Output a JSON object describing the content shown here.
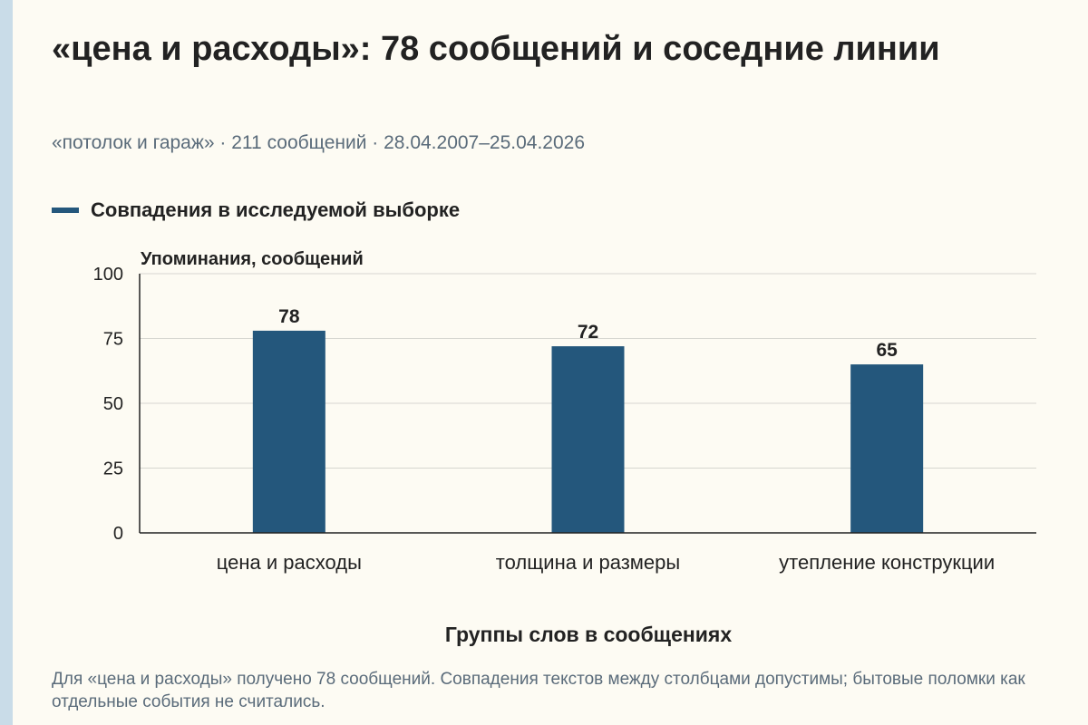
{
  "title": "«цена и расходы»: 78 сообщений и соседние линии",
  "subtitle": "«потолок и гараж» · 211 сообщений · 28.04.2007–25.04.2026",
  "footnote": "Для «цена и расходы» получено 78 сообщений. Совпадения текстов между столбцами допустимы; бытовые поломки как отдельные события не считались.",
  "colors": {
    "bar": "#24577c",
    "grid": "#d6d6d0",
    "axis": "#222222",
    "background": "#fdfbf3"
  },
  "chart_data": {
    "type": "bar",
    "legend_position": "top-left",
    "grid": true,
    "title": "",
    "xlabel": "Группы слов в сообщениях",
    "ylabel": "Упоминания, сообщений",
    "ylim": [
      0,
      100
    ],
    "yticks": [
      0,
      25,
      50,
      75,
      100
    ],
    "categories": [
      "цена и расходы",
      "толщина и размеры",
      "утепление конструкции"
    ],
    "series": [
      {
        "name": "Совпадения в исследуемой выборке",
        "values": [
          78,
          72,
          65
        ]
      }
    ],
    "data_labels": [
      "78",
      "72",
      "65"
    ]
  }
}
